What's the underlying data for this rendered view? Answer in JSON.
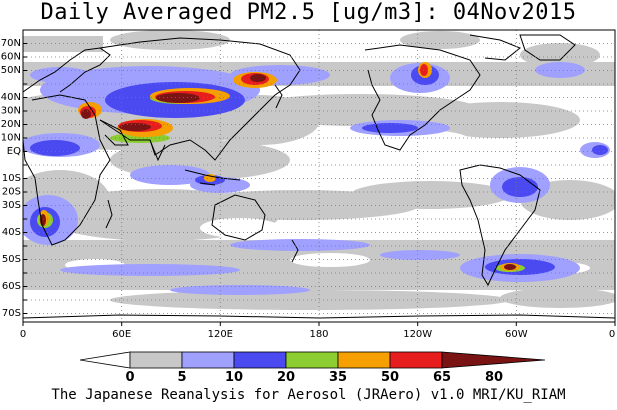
{
  "title": "Daily Averaged PM2.5 [ug/m3]: 04Nov2015",
  "footer": "The Japanese Reanalysis for Aerosol (JRAero) v1.0 MRI/KU_RIAM",
  "lat_labels": [
    "70N",
    "60N",
    "50N",
    "40N",
    "30N",
    "20N",
    "10N",
    "EQ",
    "10S",
    "20S",
    "30S",
    "40S",
    "50S",
    "60S",
    "70S"
  ],
  "lon_labels": [
    "0",
    "60E",
    "120E",
    "180",
    "120W",
    "60W",
    "0"
  ],
  "colorbar": {
    "ticks": [
      "0",
      "5",
      "10",
      "20",
      "35",
      "50",
      "65",
      "80"
    ],
    "colors": [
      "#ffffff",
      "#c8c8c8",
      "#a0a0ff",
      "#4a4af0",
      "#8ccd32",
      "#f5a000",
      "#e61e1e",
      "#7a1414"
    ]
  },
  "chart_data": {
    "type": "heatmap",
    "title": "Daily Averaged PM2.5 [ug/m3]: 04Nov2015",
    "date": "04Nov2015",
    "units": "ug/m3",
    "lat_range": [
      -75,
      75
    ],
    "lon_range": [
      0,
      360
    ],
    "grid": true,
    "levels": [
      0,
      5,
      10,
      20,
      35,
      50,
      65,
      80
    ],
    "colorbar_placement": "bottom"
  }
}
